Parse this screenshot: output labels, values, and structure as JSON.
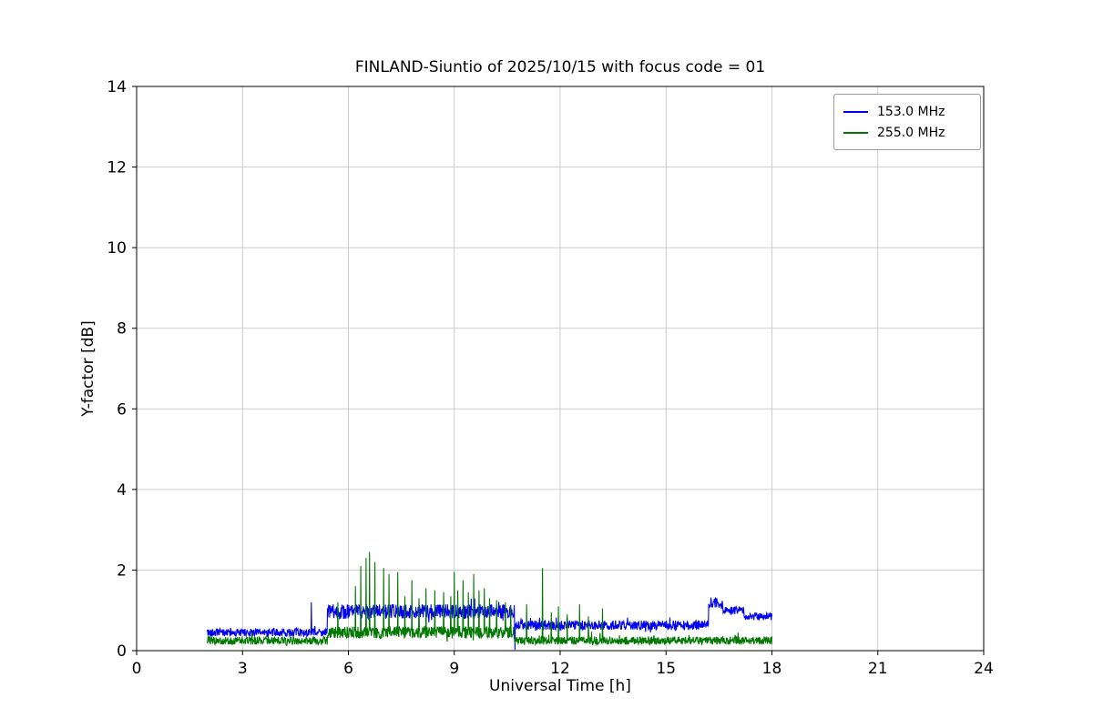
{
  "chart_data": {
    "type": "line",
    "title": "FINLAND-Siuntio of 2025/10/15 with focus code = 01",
    "xlabel": "Universal Time [h]",
    "ylabel": "Y-factor [dB]",
    "xlim": [
      0,
      24
    ],
    "ylim": [
      0,
      14
    ],
    "xticks": [
      0,
      3,
      6,
      9,
      12,
      15,
      18,
      21,
      24
    ],
    "yticks": [
      0,
      2,
      4,
      6,
      8,
      10,
      12,
      14
    ],
    "grid": true,
    "legend_position": "top-right",
    "background": "#ffffff",
    "grid_color": "#c8c8c8",
    "series": [
      {
        "name": "153.0 MHz",
        "color": "#0000ee",
        "segments": [
          {
            "x0": 2.0,
            "x1": 5.4,
            "base": 0.45,
            "noise": 0.1
          },
          {
            "x0": 5.4,
            "x1": 10.7,
            "base": 0.97,
            "noise": 0.18
          },
          {
            "x0": 10.7,
            "x1": 16.2,
            "base": 0.63,
            "noise": 0.12
          },
          {
            "x0": 16.2,
            "x1": 16.6,
            "base": 1.18,
            "noise": 0.12
          },
          {
            "x0": 16.6,
            "x1": 17.2,
            "base": 1.0,
            "noise": 0.1
          },
          {
            "x0": 17.2,
            "x1": 18.0,
            "base": 0.85,
            "noise": 0.1
          }
        ],
        "spikes": [
          {
            "x": 4.95,
            "y": 1.2
          },
          {
            "x": 10.72,
            "y": 0.02
          },
          {
            "x": 16.4,
            "y": 1.32
          }
        ]
      },
      {
        "name": "255.0 MHz",
        "color": "#007700",
        "segments": [
          {
            "x0": 2.0,
            "x1": 5.4,
            "base": 0.25,
            "noise": 0.1
          },
          {
            "x0": 5.4,
            "x1": 10.7,
            "base": 0.45,
            "noise": 0.15
          },
          {
            "x0": 10.7,
            "x1": 18.0,
            "base": 0.25,
            "noise": 0.1
          }
        ],
        "spikes": [
          {
            "x": 5.7,
            "y": 1.2
          },
          {
            "x": 6.2,
            "y": 1.6
          },
          {
            "x": 6.35,
            "y": 2.1
          },
          {
            "x": 6.5,
            "y": 2.3
          },
          {
            "x": 6.6,
            "y": 2.45
          },
          {
            "x": 6.75,
            "y": 2.2
          },
          {
            "x": 7.0,
            "y": 2.05
          },
          {
            "x": 7.15,
            "y": 1.9
          },
          {
            "x": 7.4,
            "y": 1.95
          },
          {
            "x": 7.6,
            "y": 1.35
          },
          {
            "x": 7.8,
            "y": 1.75
          },
          {
            "x": 8.0,
            "y": 1.3
          },
          {
            "x": 8.2,
            "y": 1.55
          },
          {
            "x": 8.45,
            "y": 1.5
          },
          {
            "x": 8.7,
            "y": 1.45
          },
          {
            "x": 8.9,
            "y": 1.35
          },
          {
            "x": 9.0,
            "y": 1.95
          },
          {
            "x": 9.1,
            "y": 1.5
          },
          {
            "x": 9.25,
            "y": 1.75
          },
          {
            "x": 9.4,
            "y": 1.45
          },
          {
            "x": 9.55,
            "y": 1.9
          },
          {
            "x": 9.7,
            "y": 1.5
          },
          {
            "x": 9.85,
            "y": 1.55
          },
          {
            "x": 10.0,
            "y": 1.3
          },
          {
            "x": 10.2,
            "y": 1.25
          },
          {
            "x": 10.45,
            "y": 1.2
          },
          {
            "x": 10.6,
            "y": 1.1
          },
          {
            "x": 11.05,
            "y": 1.15
          },
          {
            "x": 11.5,
            "y": 2.05
          },
          {
            "x": 11.75,
            "y": 0.95
          },
          {
            "x": 11.95,
            "y": 1.1
          },
          {
            "x": 12.2,
            "y": 0.9
          },
          {
            "x": 12.55,
            "y": 1.15
          },
          {
            "x": 12.8,
            "y": 0.85
          },
          {
            "x": 13.2,
            "y": 1.05
          }
        ]
      }
    ]
  }
}
